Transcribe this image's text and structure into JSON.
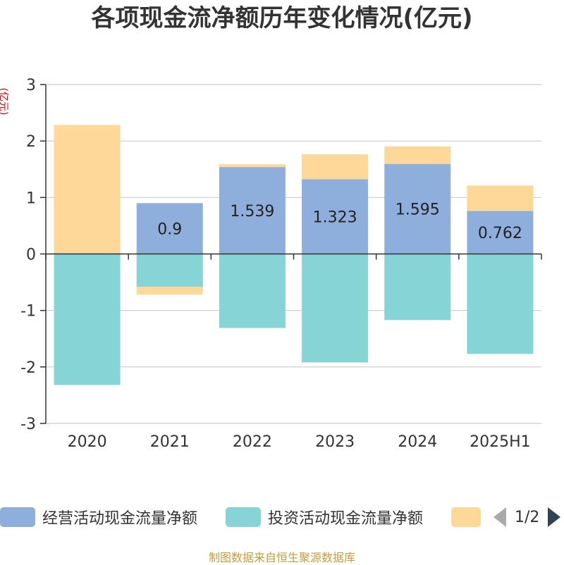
{
  "title": "各项现金流净额历年变化情况(亿元)",
  "unit_label": "(亿元)",
  "source": "制图数据来自恒生聚源数据库",
  "legend": {
    "items": [
      {
        "label": "经营活动现金流量净额",
        "color": "#8eaedb"
      },
      {
        "label": "投资活动现金流量净额",
        "color": "#86d4d6"
      },
      {
        "label": "",
        "color": "#fdd898"
      }
    ],
    "page": "1/2"
  },
  "chart_data": {
    "type": "bar",
    "stacked": true,
    "categories": [
      "2020",
      "2021",
      "2022",
      "2023",
      "2024",
      "2025H1"
    ],
    "ylim": [
      -3,
      3
    ],
    "yticks": [
      3,
      2,
      1,
      0,
      -1,
      -2,
      -3
    ],
    "grid": true,
    "legend_position": "bottom",
    "series": [
      {
        "name": "经营活动现金流量净额",
        "color": "#8eaedb",
        "values": [
          0.014,
          0.9,
          1.539,
          1.323,
          1.595,
          0.762
        ],
        "labels": [
          "",
          "0.9",
          "1.539",
          "1.323",
          "1.595",
          "0.762"
        ]
      },
      {
        "name": "投资活动现金流量净额",
        "color": "#86d4d6",
        "values": [
          -2.32,
          -0.58,
          -1.31,
          -1.92,
          -1.17,
          -1.77
        ]
      },
      {
        "color": "#fdd898",
        "values": [
          2.27,
          -0.14,
          0.05,
          0.44,
          0.31,
          0.45
        ]
      }
    ]
  }
}
